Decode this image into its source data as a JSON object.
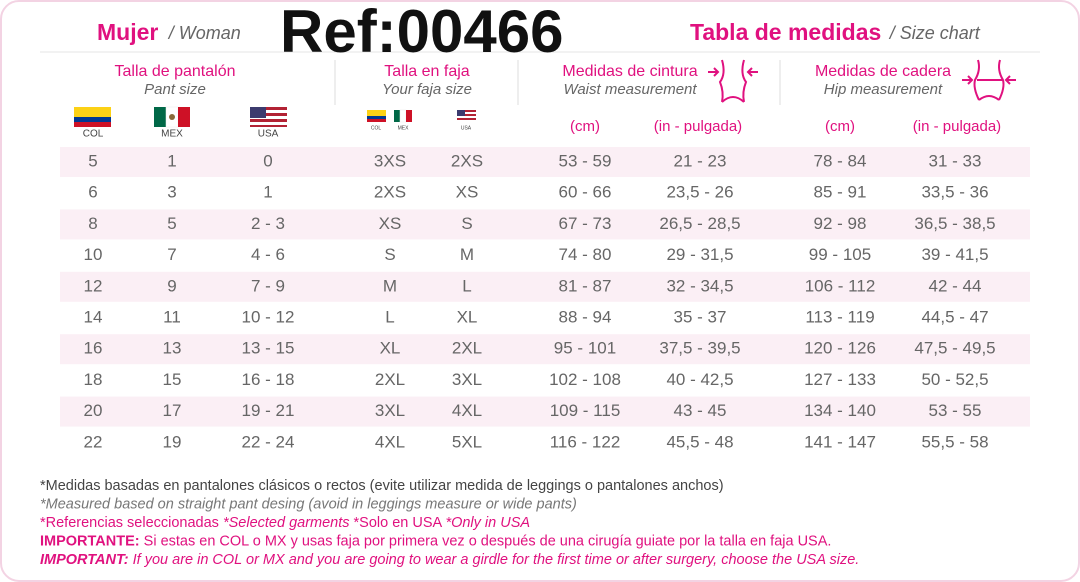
{
  "header": {
    "title_es": "Mujer",
    "title_en": "/ Woman",
    "reference": "Ref:00466",
    "chart_title_es": "Tabla de medidas",
    "chart_title_en": "/ Size chart"
  },
  "column_groups": [
    {
      "title": "Talla de pantalón",
      "subtitle": "Pant size"
    },
    {
      "title": "Talla en faja",
      "subtitle": "Your faja size"
    },
    {
      "title": "Medidas de cintura",
      "subtitle": "Waist measurement"
    },
    {
      "title": "Medidas de cadera",
      "subtitle": "Hip measurement"
    }
  ],
  "flags": {
    "pant": [
      "COL",
      "MEX",
      "USA"
    ],
    "faja": [
      "COL",
      "MEX",
      "USA"
    ]
  },
  "units": [
    "(cm)",
    "(in - pulgada)",
    "(cm)",
    "(in - pulgada)"
  ],
  "table": {
    "rows": [
      [
        "5",
        "1",
        "0",
        "3XS",
        "2XS",
        "53 - 59",
        "21 - 23",
        "78 - 84",
        "31 - 33"
      ],
      [
        "6",
        "3",
        "1",
        "2XS",
        "XS",
        "60 - 66",
        "23,5 - 26",
        "85 - 91",
        "33,5 - 36"
      ],
      [
        "8",
        "5",
        "2 - 3",
        "XS",
        "S",
        "67 - 73",
        "26,5 - 28,5",
        "92 - 98",
        "36,5 - 38,5"
      ],
      [
        "10",
        "7",
        "4 - 6",
        "S",
        "M",
        "74 - 80",
        "29 - 31,5",
        "99 - 105",
        "39 - 41,5"
      ],
      [
        "12",
        "9",
        "7 - 9",
        "M",
        "L",
        "81 - 87",
        "32 - 34,5",
        "106 - 112",
        "42 - 44"
      ],
      [
        "14",
        "11",
        "10 - 12",
        "L",
        "XL",
        "88 - 94",
        "35 - 37",
        "113 - 119",
        "44,5 - 47"
      ],
      [
        "16",
        "13",
        "13 - 15",
        "XL",
        "2XL",
        "95 - 101",
        "37,5 - 39,5",
        "120 - 126",
        "47,5 - 49,5"
      ],
      [
        "18",
        "15",
        "16 - 18",
        "2XL",
        "3XL",
        "102 - 108",
        "40 - 42,5",
        "127 - 133",
        "50 - 52,5"
      ],
      [
        "20",
        "17",
        "19 - 21",
        "3XL",
        "4XL",
        "109 - 115",
        "43 - 45",
        "134 - 140",
        "53 - 55"
      ],
      [
        "22",
        "19",
        "22 - 24",
        "4XL",
        "5XL",
        "116 - 122",
        "45,5 - 48",
        "141 - 147",
        "55,5 - 58"
      ]
    ]
  },
  "notes": [
    [
      "*Medidas basadas en pantalones clásicos o rectos (evite utilizar medida de leggings o pantalones anchos)"
    ],
    [
      "*Measured based on straight pant desing (avoid in leggings measure or wide pants)"
    ],
    [
      "*Referencias seleccionadas ",
      "*Selected garments",
      " *Solo en USA ",
      "*Only in USA"
    ],
    [
      "IMPORTANTE:",
      " Si estas en COL o MX y usas faja por primera vez o después de una cirugía guiate por la talla en faja USA."
    ],
    [
      "IMPORTANT:",
      " If you are in COL or MX and you are going to wear a girdle for the first time or after surgery, choose the USA size."
    ]
  ]
}
